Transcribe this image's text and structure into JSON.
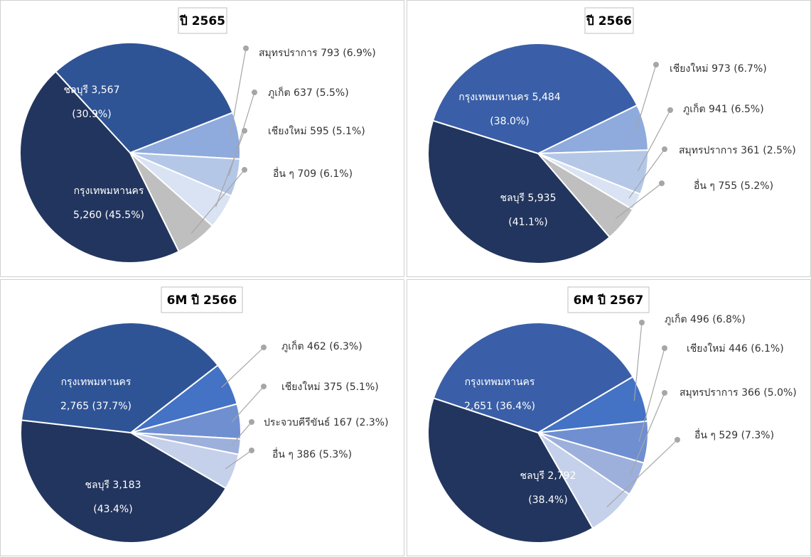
{
  "chart_data": [
    {
      "type": "pie",
      "title": "ปี 2565",
      "slices": [
        {
          "label": "กรุงเทพมหานคร",
          "value": 5260,
          "pct": "45.5%",
          "color": "#22355E",
          "inside": true,
          "text": [
            "กรุงเทพมหานคร",
            "5,260 (45.5%)"
          ]
        },
        {
          "label": "ชลบุรี",
          "value": 3567,
          "pct": "30.9%",
          "color": "#2F5496",
          "inside": true,
          "text": [
            "ชลบุรี 3,567",
            "(30.9%)"
          ]
        },
        {
          "label": "สมุทรปราการ",
          "value": 793,
          "pct": "6.9%",
          "color": "#8FAADC",
          "inside": false,
          "text": [
            "สมุทรปราการ 793 (6.9%)"
          ]
        },
        {
          "label": "ภูเก็ต",
          "value": 637,
          "pct": "5.5%",
          "color": "#B4C7E7",
          "inside": false,
          "text": [
            "ภูเก็ต 637 (5.5%)"
          ]
        },
        {
          "label": "เชียงใหม่",
          "value": 595,
          "pct": "5.1%",
          "color": "#DAE3F3",
          "inside": false,
          "text": [
            "เชียงใหม่ 595 (5.1%)"
          ]
        },
        {
          "label": "อื่น ๆ",
          "value": 709,
          "pct": "6.1%",
          "color": "#BFBFBF",
          "inside": false,
          "text": [
            "อื่น ๆ 709 (6.1%)"
          ]
        }
      ]
    },
    {
      "type": "pie",
      "title": "ปี 2566",
      "slices": [
        {
          "label": "ชลบุรี",
          "value": 5935,
          "pct": "41.1%",
          "color": "#22355E",
          "inside": true,
          "text": [
            "ชลบุรี 5,935",
            "(41.1%)"
          ]
        },
        {
          "label": "กรุงเทพมหานคร",
          "value": 5484,
          "pct": "38.0%",
          "color": "#3A5FA8",
          "inside": true,
          "text": [
            "กรุงเทพมหานคร 5,484",
            "(38.0%)"
          ]
        },
        {
          "label": "เชียงใหม่",
          "value": 973,
          "pct": "6.7%",
          "color": "#8FAADC",
          "inside": false,
          "text": [
            "เชียงใหม่ 973 (6.7%)"
          ]
        },
        {
          "label": "ภูเก็ต",
          "value": 941,
          "pct": "6.5%",
          "color": "#B4C7E7",
          "inside": false,
          "text": [
            "ภูเก็ต 941 (6.5%)"
          ]
        },
        {
          "label": "สมุทรปราการ",
          "value": 361,
          "pct": "2.5%",
          "color": "#DAE3F3",
          "inside": false,
          "text": [
            "สมุทรปราการ 361 (2.5%)"
          ]
        },
        {
          "label": "อื่น ๆ",
          "value": 755,
          "pct": "5.2%",
          "color": "#BFBFBF",
          "inside": false,
          "text": [
            "อื่น ๆ 755 (5.2%)"
          ]
        }
      ]
    },
    {
      "type": "pie",
      "title": "6M ปี 2566",
      "slices": [
        {
          "label": "ชลบุรี",
          "value": 3183,
          "pct": "43.4%",
          "color": "#22355E",
          "inside": true,
          "text": [
            "ชลบุรี 3,183",
            "(43.4%)"
          ]
        },
        {
          "label": "กรุงเทพมหานคร",
          "value": 2765,
          "pct": "37.7%",
          "color": "#2F5496",
          "inside": true,
          "text": [
            "กรุงเทพมหานคร",
            "2,765 (37.7%)"
          ]
        },
        {
          "label": "ภูเก็ต",
          "value": 462,
          "pct": "6.3%",
          "color": "#4472C4",
          "inside": false,
          "text": [
            "ภูเก็ต 462 (6.3%)"
          ]
        },
        {
          "label": "เชียงใหม่",
          "value": 375,
          "pct": "5.1%",
          "color": "#6F8FD0",
          "inside": false,
          "text": [
            "เชียงใหม่ 375 (5.1%)"
          ]
        },
        {
          "label": "ประจวบคีรีขันธ์",
          "value": 167,
          "pct": "2.3%",
          "color": "#9DB0DC",
          "inside": false,
          "text": [
            "ประจวบคีรีขันธ์ 167 (2.3%)"
          ]
        },
        {
          "label": "อื่น ๆ",
          "value": 386,
          "pct": "5.3%",
          "color": "#C5D0EA",
          "inside": false,
          "text": [
            "อื่น ๆ 386 (5.3%)"
          ]
        }
      ]
    },
    {
      "type": "pie",
      "title": "6M ปี 2567",
      "slices": [
        {
          "label": "ชลบุรี",
          "value": 2792,
          "pct": "38.4%",
          "color": "#22355E",
          "inside": true,
          "text": [
            "ชลบุรี 2,792",
            "(38.4%)"
          ]
        },
        {
          "label": "กรุงเทพมหานคร",
          "value": 2651,
          "pct": "36.4%",
          "color": "#3A5FA8",
          "inside": true,
          "text": [
            "กรุงเทพมหานคร",
            "2,651 (36.4%)"
          ]
        },
        {
          "label": "ภูเก็ต",
          "value": 496,
          "pct": "6.8%",
          "color": "#4472C4",
          "inside": false,
          "text": [
            "ภูเก็ต 496 (6.8%)"
          ]
        },
        {
          "label": "เชียงใหม่",
          "value": 446,
          "pct": "6.1%",
          "color": "#6F8FD0",
          "inside": false,
          "text": [
            "เชียงใหม่ 446 (6.1%)"
          ]
        },
        {
          "label": "สมุทรปราการ",
          "value": 366,
          "pct": "5.0%",
          "color": "#9DB0DC",
          "inside": false,
          "text": [
            "สมุทรปราการ 366 (5.0%)"
          ]
        },
        {
          "label": "อื่น ๆ",
          "value": 529,
          "pct": "7.3%",
          "color": "#C5D0EA",
          "inside": false,
          "text": [
            "อื่น ๆ 529 (7.3%)"
          ]
        }
      ]
    }
  ]
}
